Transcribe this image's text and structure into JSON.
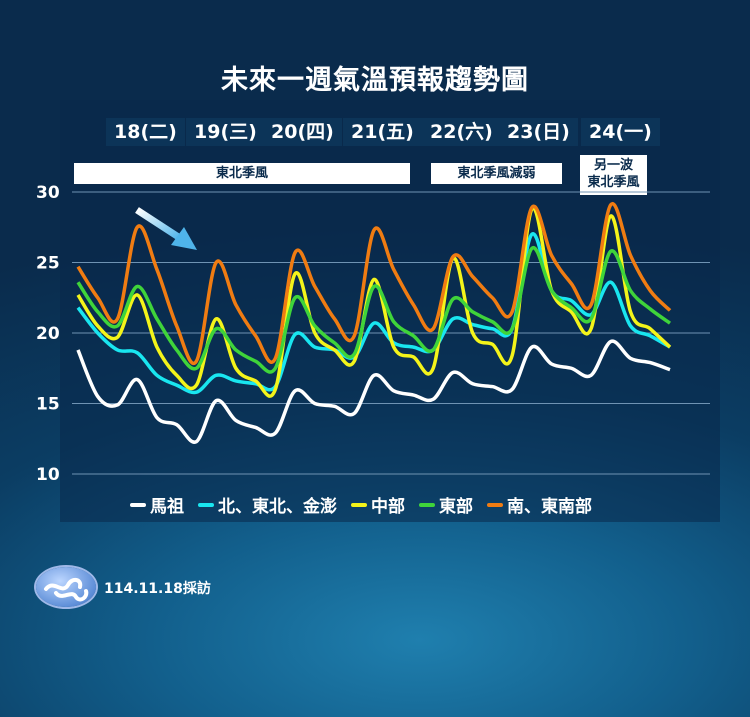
{
  "title": "未來一週氣溫預報趨勢圖",
  "days": [
    "18(二)",
    "19(三)",
    "20(四)",
    "21(五)",
    "22(六)",
    "23(日)",
    "24(一)"
  ],
  "bands": [
    {
      "label": "東北季風"
    },
    {
      "label": "東北季風減弱"
    },
    {
      "label_line1": "另一波",
      "label_line2": "東北季風"
    }
  ],
  "footer": {
    "date": "114.11.18採訪"
  },
  "chart_data": {
    "type": "line",
    "title": "未來一週氣溫預報趨勢圖",
    "ylim": [
      10,
      30
    ],
    "yticks": [
      10,
      15,
      20,
      25,
      30
    ],
    "x_tick_labels": [
      "18(二)",
      "19(三)",
      "20(四)",
      "21(五)",
      "22(六)",
      "23(日)",
      "24(一)"
    ],
    "grid": true,
    "legend_position": "bottom",
    "series": [
      {
        "name": "馬祖",
        "color": "#ffffff",
        "values": [
          18.8,
          15.5,
          14.9,
          16.7,
          14,
          13.5,
          12.3,
          15.2,
          13.8,
          13.3,
          12.9,
          15.9,
          15,
          14.8,
          14.3,
          17,
          15.9,
          15.6,
          15.3,
          17.2,
          16.4,
          16.2,
          16,
          19,
          17.8,
          17.5,
          17,
          19.4,
          18.2,
          17.9,
          17.4
        ]
      },
      {
        "name": "北、東北、金澎",
        "color": "#19e6f0",
        "values": [
          21.8,
          20,
          18.8,
          18.6,
          17,
          16.3,
          15.8,
          17,
          16.6,
          16.4,
          16.2,
          19.9,
          19,
          18.8,
          18.3,
          20.7,
          19.3,
          19,
          18.8,
          21,
          20.6,
          20.3,
          20.3,
          27,
          23,
          22.3,
          21.3,
          23.6,
          20.5,
          19.8,
          19
        ]
      },
      {
        "name": "中部",
        "color": "#f4f41a",
        "values": [
          22.7,
          20.5,
          19.7,
          22.7,
          19,
          17,
          16.3,
          21,
          17.5,
          16.6,
          16,
          24.2,
          20,
          18.8,
          18,
          23.8,
          19,
          18.3,
          17.5,
          25.3,
          20,
          19.2,
          18.4,
          28.8,
          23,
          21.5,
          20.3,
          28.3,
          21.5,
          20.3,
          19
        ]
      },
      {
        "name": "東部",
        "color": "#3fd43a",
        "values": [
          23.6,
          21.5,
          20.5,
          23.3,
          21,
          18.8,
          17.5,
          20.3,
          18.8,
          18,
          17.5,
          22.5,
          20.5,
          19.3,
          18.5,
          23.3,
          20.8,
          19.8,
          18.8,
          22.4,
          21.5,
          20.8,
          20.3,
          26,
          23,
          21.8,
          21,
          25.8,
          23,
          21.7,
          20.7
        ]
      },
      {
        "name": "南、東南部",
        "color": "#f07c12",
        "values": [
          24.7,
          22.5,
          21,
          27.5,
          24.5,
          20.5,
          18,
          25,
          22,
          19.8,
          18.2,
          25.7,
          23.3,
          21,
          19.8,
          27.3,
          24.5,
          22,
          20.3,
          25.4,
          24,
          22.5,
          21.5,
          28.9,
          25.5,
          23.5,
          22,
          29.1,
          25.5,
          23,
          21.6
        ]
      }
    ]
  }
}
